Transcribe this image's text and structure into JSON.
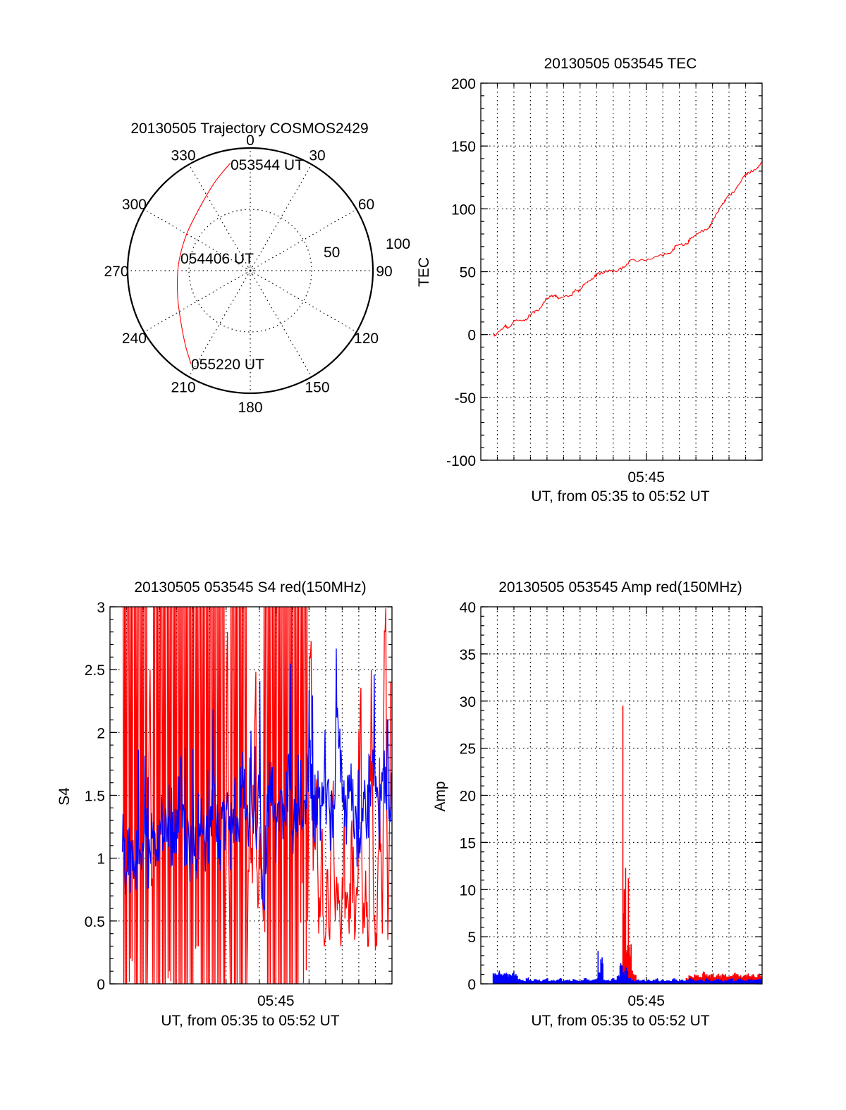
{
  "chart_data": [
    {
      "type": "polar",
      "id": "trajectory",
      "title": "20130505 Trajectory COSMOS2429",
      "azimuth_labels": [
        "0",
        "30",
        "60",
        "90",
        "120",
        "150",
        "180",
        "210",
        "240",
        "270",
        "300",
        "330"
      ],
      "radial_labels": [
        "50",
        "100"
      ],
      "rlim": [
        0,
        100
      ],
      "series": [
        {
          "name": "trajectory",
          "color": "#ff0000",
          "points_az_r": [
            [
              349.5,
              89.2
            ],
            [
              338.4,
              77.9
            ],
            [
              322.9,
              66.7
            ],
            [
              300.3,
              59.9
            ],
            [
              280.9,
              58.5
            ],
            [
              265.9,
              59.5
            ],
            [
              248.4,
              63.5
            ],
            [
              233.0,
              70.7
            ],
            [
              220.5,
              81.1
            ],
            [
              212.4,
              90.1
            ]
          ]
        }
      ],
      "annotations": [
        "053544 UT",
        "054406 UT",
        "055220 UT"
      ]
    },
    {
      "type": "line",
      "id": "tec",
      "title": "20130505 053545 TEC",
      "xlabel": "UT, from 05:35 to 05:52 UT",
      "ylabel": "TEC",
      "x_unit": "minutes after 05:35",
      "xlim": [
        0,
        17
      ],
      "xtick_labels": [
        {
          "at": 10,
          "label": "05:45"
        }
      ],
      "ylim": [
        -100,
        200
      ],
      "yticks": [
        "-100",
        "-50",
        "0",
        "50",
        "100",
        "150",
        "200"
      ],
      "grid": true,
      "series": [
        {
          "name": "TEC",
          "color": "#ff0000",
          "points": [
            [
              0.75,
              0.6
            ],
            [
              0.89,
              -1
            ],
            [
              1.46,
              7
            ],
            [
              1.6,
              5
            ],
            [
              2.09,
              11
            ],
            [
              2.65,
              11
            ],
            [
              3.07,
              17
            ],
            [
              3.5,
              19
            ],
            [
              3.99,
              29
            ],
            [
              4.48,
              31
            ],
            [
              4.7,
              29
            ],
            [
              5.47,
              31
            ],
            [
              5.68,
              35
            ],
            [
              5.97,
              35
            ],
            [
              6.32,
              41
            ],
            [
              6.74,
              44
            ],
            [
              7.02,
              48
            ],
            [
              7.73,
              51
            ],
            [
              8.15,
              50
            ],
            [
              8.72,
              54
            ],
            [
              9.0,
              59
            ],
            [
              9.99,
              59
            ],
            [
              10.97,
              63
            ],
            [
              11.54,
              66
            ],
            [
              11.82,
              71
            ],
            [
              12.45,
              72
            ],
            [
              12.66,
              76
            ],
            [
              13.09,
              80
            ],
            [
              13.8,
              85
            ],
            [
              14.0,
              90
            ],
            [
              14.57,
              103
            ],
            [
              14.92,
              110
            ],
            [
              15.34,
              114
            ],
            [
              15.9,
              126
            ],
            [
              16.18,
              129
            ],
            [
              16.6,
              131
            ],
            [
              16.96,
              137
            ]
          ]
        }
      ]
    },
    {
      "type": "line",
      "id": "s4",
      "title": "20130505 053545 S4 red(150MHz)",
      "xlabel": "UT, from 05:35 to 05:52 UT",
      "ylabel": "S4",
      "x_unit": "minutes after 05:35",
      "xlim": [
        0,
        17
      ],
      "xtick_labels": [
        {
          "at": 10,
          "label": "05:45"
        }
      ],
      "ylim": [
        0,
        3
      ],
      "yticks": [
        "0",
        "0.5",
        "1",
        "1.5",
        "2",
        "2.5",
        "3"
      ],
      "grid": true,
      "series": [
        {
          "name": "red (150MHz)",
          "color": "#ff0000",
          "x_start_min": 0.75,
          "step_s": 10,
          "values": [
            3,
            0,
            3,
            0.2,
            3,
            0,
            3,
            0,
            3,
            0,
            2.5,
            0,
            3,
            0,
            3,
            0,
            3,
            0.1,
            3,
            0,
            3,
            0,
            3,
            0,
            3,
            0,
            3,
            0.3,
            3,
            0,
            3,
            0,
            3,
            0,
            3,
            0,
            3,
            0,
            2.8,
            0,
            3,
            0,
            3,
            0,
            3,
            0,
            1.8,
            0.8,
            2.2,
            0.6,
            1.2,
            0.5,
            3,
            0,
            3,
            0,
            3,
            0,
            3,
            0,
            3,
            0,
            3,
            0,
            3,
            0.8,
            3,
            0.5,
            2.6,
            0.9,
            1.5,
            0.4,
            1.2,
            0.3,
            0.9,
            0.35,
            1.4,
            0.5,
            0.8,
            0.3,
            1.1,
            0.6,
            0.4,
            1.3,
            0.35,
            0.7,
            2.2,
            0.4,
            0.9,
            0.3,
            2.5,
            0.5,
            0.3,
            1.8,
            0.4,
            2.8,
            0.35,
            2.4
          ]
        },
        {
          "name": "blue",
          "color": "#0000ff",
          "x_start_min": 0.75,
          "step_s": 15,
          "values": [
            1.05,
            0.95,
            1.0,
            0.9,
            1.1,
            1.0,
            0.95,
            1.2,
            1.05,
            1.3,
            1.15,
            1.4,
            1.1,
            1.25,
            1.6,
            1.2,
            1.05,
            1.15,
            1.0,
            1.3,
            1.1,
            1.25,
            1.5,
            1.1,
            1.2,
            1.35,
            1.15,
            1.4,
            1.2,
            1.8,
            1.3,
            1.45,
            1.1,
            1.5,
            0.6,
            1.35,
            1.6,
            1.2,
            1.45,
            1.3,
            1.7,
            1.2,
            1.4,
            1.55,
            1.25,
            1.8,
            1.35,
            1.5,
            1.3,
            1.6,
            1.2,
            1.45,
            2.1,
            1.4,
            1.3,
            1.6,
            1.25,
            1.1,
            1.45,
            1.35,
            1.55,
            1.8,
            1.3,
            1.5,
            1.4,
            1.45
          ]
        }
      ]
    },
    {
      "type": "line",
      "id": "amp",
      "title": "20130505 053545 Amp red(150MHz)",
      "xlabel": "UT, from 05:35 to 05:52 UT",
      "ylabel": "Amp",
      "x_unit": "minutes after 05:35",
      "xlim": [
        0,
        17
      ],
      "xtick_labels": [
        {
          "at": 10,
          "label": "05:45"
        }
      ],
      "ylim": [
        0,
        40
      ],
      "yticks": [
        "0",
        "5",
        "10",
        "15",
        "20",
        "25",
        "30",
        "35",
        "40"
      ],
      "grid": true,
      "series": [
        {
          "name": "red (150MHz)",
          "color": "#ff0000",
          "x_start_min": 0.75,
          "step_s": 10,
          "values": [
            0,
            0,
            0,
            0,
            0,
            0,
            0,
            0,
            0,
            0,
            0,
            0,
            0,
            0,
            0,
            0,
            0,
            0,
            0,
            0,
            0,
            0,
            0,
            0,
            0,
            0,
            0,
            0,
            0,
            0,
            0,
            0,
            0,
            0,
            0,
            0,
            0,
            0,
            0,
            0,
            0,
            0,
            0,
            0,
            0,
            0,
            0.5,
            29.5,
            12.3,
            11.2,
            4.2,
            1.0,
            0.3,
            0,
            0,
            0,
            0,
            0,
            0,
            0,
            0,
            0,
            0,
            0,
            0,
            0,
            0,
            0,
            0,
            0,
            0.6,
            0.9,
            0.7,
            1.0,
            0.8,
            0.7,
            1.1,
            0.9,
            0.8,
            1.0,
            0.7,
            0.9,
            0.8,
            1.0,
            0.9,
            0.7,
            0.8,
            1.0,
            0.9,
            0.8,
            0.7,
            0.9,
            1.0,
            0.8,
            0.9,
            0.7,
            1.0,
            0.8
          ]
        },
        {
          "name": "blue",
          "color": "#0000ff",
          "x_start_min": 0.75,
          "step_s": 10,
          "values": [
            1.1,
            1.0,
            1.2,
            1.0,
            1.1,
            0.9,
            1.0,
            1.1,
            0.9,
            0.5,
            0.4,
            0.3,
            0.6,
            0.4,
            0.3,
            0.5,
            0.4,
            0.3,
            0.4,
            0.5,
            0.3,
            0.4,
            0.3,
            0.4,
            0.5,
            0.3,
            0.4,
            0.4,
            0.3,
            0.5,
            0.4,
            0.3,
            0.4,
            0.6,
            0.4,
            0.3,
            0.4,
            0.5,
            3.5,
            2.6,
            0.4,
            0.4,
            0.3,
            0.5,
            0.4,
            0.8,
            1.9,
            1.2,
            1.5,
            0.6,
            0.4,
            0.3,
            0.4,
            0.3,
            0.4,
            0.3,
            0.4,
            0.3,
            0.4,
            0.5,
            0.3,
            0.4,
            0.3,
            0.4,
            0.3,
            0.5,
            0.4,
            0.3,
            0.4,
            0.3,
            0.4,
            0.5,
            0.4,
            0.3,
            0.4,
            0.4,
            0.3,
            0.5,
            0.4,
            0.3,
            0.4,
            0.5,
            0.4,
            0.3,
            0.4,
            0.4,
            0.5,
            0.3,
            0.4,
            0.5,
            0.4,
            0.3,
            0.4,
            0.5,
            0.4,
            0.4,
            0.5,
            0.4
          ]
        }
      ]
    }
  ]
}
